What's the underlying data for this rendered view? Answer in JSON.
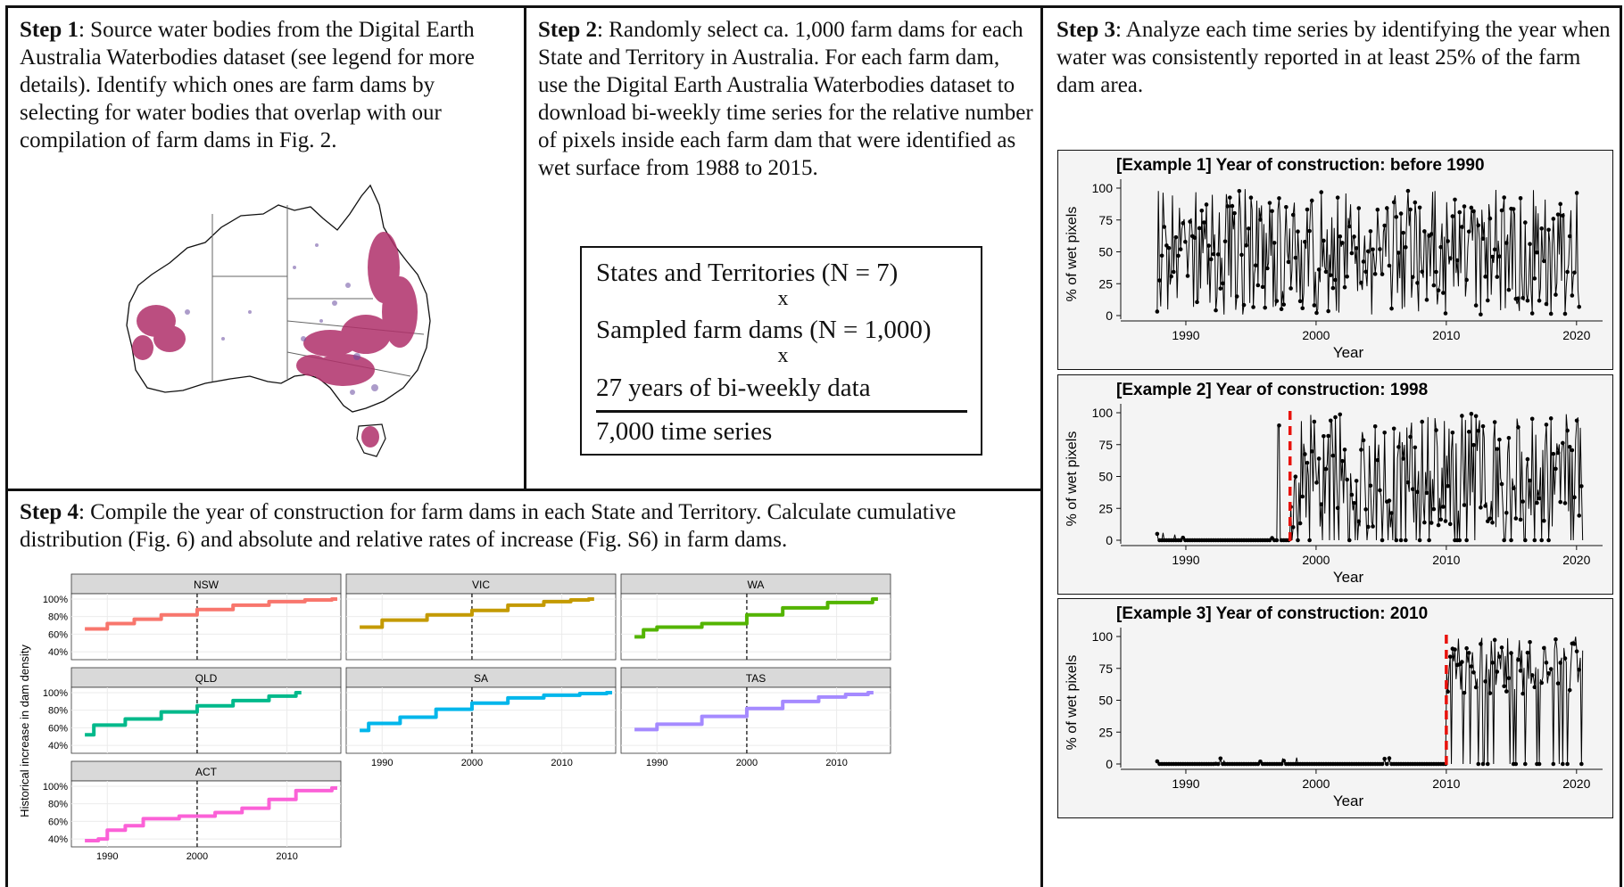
{
  "step1": {
    "label": "Step 1",
    "text": ": Source water bodies from the Digital Earth Australia Waterbodies dataset (see legend for more details). Identify which ones are farm dams by selecting for water bodies that overlap with our compilation of farm dams in Fig. 2."
  },
  "step2": {
    "label": "Step 2",
    "text": ": Randomly select ca. 1,000 farm dams for each State and Territory in Australia. For each farm dam, use the Digital Earth Australia Waterbodies dataset to download bi-weekly time series for the relative number of pixels inside each farm dam that were identified as wet surface from 1988 to 2015.",
    "formula": {
      "line1": "States and Territories (N = 7)",
      "x1": "x",
      "line2": "Sampled farm dams (N = 1,000)",
      "x2": "x",
      "line3": "27 years of bi-weekly data",
      "result": "7,000 time series"
    }
  },
  "step3": {
    "label": "Step 3",
    "text": ": Analyze each time series by identifying the year when water was consistently reported in at least 25% of the farm dam area."
  },
  "step4": {
    "label": "Step 4",
    "text": ": Compile the year of construction for farm dams in each State and Territory. Calculate cumulative distribution (Fig. 6) and absolute and relative rates of increase (Fig. S6) in farm dams."
  },
  "chart_data": [
    {
      "type": "line",
      "title": "[Example 1] Year of construction: before 1990",
      "xlabel": "Year",
      "ylabel": "% of wet pixels",
      "xlim": [
        1985,
        2022
      ],
      "ylim": [
        0,
        100
      ],
      "xticks": [
        1990,
        2000,
        2010,
        2020
      ],
      "yticks": [
        0,
        25,
        50,
        75,
        100
      ],
      "construction_year": null,
      "series": [
        {
          "x_start": 1987.8,
          "x_end": 2020.2,
          "pattern": "fluctuating 0-100 throughout"
        }
      ],
      "colors": {
        "line": "#000000",
        "marker": "#000000"
      }
    },
    {
      "type": "line",
      "title": "[Example 2] Year of construction: 1998",
      "xlabel": "Year",
      "ylabel": "% of wet pixels",
      "xlim": [
        1985,
        2022
      ],
      "ylim": [
        0,
        100
      ],
      "xticks": [
        1990,
        2000,
        2010,
        2020
      ],
      "yticks": [
        0,
        25,
        50,
        75,
        100
      ],
      "construction_year": 1998,
      "series": [
        {
          "x_start": 1987.8,
          "x_end": 2020.5,
          "pattern": "near 0 before 1998, fluctuating 0-100 after"
        }
      ],
      "colors": {
        "line": "#000000",
        "marker": "#000000",
        "construction": "#e8120c"
      }
    },
    {
      "type": "line",
      "title": "[Example 3] Year of construction: 2010",
      "xlabel": "Year",
      "ylabel": "% of wet pixels",
      "xlim": [
        1985,
        2022
      ],
      "ylim": [
        0,
        100
      ],
      "xticks": [
        1990,
        2000,
        2010,
        2020
      ],
      "yticks": [
        0,
        25,
        50,
        75,
        100
      ],
      "construction_year": 2010,
      "series": [
        {
          "x_start": 1987.8,
          "x_end": 2020.5,
          "pattern": "0 before 2010, fluctuating 0-100 after"
        }
      ],
      "colors": {
        "line": "#000000",
        "marker": "#000000",
        "construction": "#e8120c"
      }
    },
    {
      "type": "line",
      "title": "",
      "ylabel": "Historical increase in dam density",
      "xlim": [
        1986,
        2016
      ],
      "ylim": [
        35,
        102
      ],
      "xticks": [
        1990,
        2000,
        2010
      ],
      "yticks": [
        "40%",
        "60%",
        "80%",
        "100%"
      ],
      "reference_line_x": 2000,
      "facets": [
        {
          "name": "NSW",
          "color": "#f8766d",
          "x": [
            1987.5,
            1990,
            1993,
            1996,
            2000,
            2004,
            2008,
            2012,
            2015
          ],
          "y": [
            66,
            72,
            77,
            82,
            88,
            93,
            97,
            99,
            100
          ]
        },
        {
          "name": "VIC",
          "color": "#c49a00",
          "x": [
            1987.5,
            1990,
            1995,
            2000,
            2004,
            2008,
            2011,
            2013
          ],
          "y": [
            68,
            76,
            82,
            87,
            93,
            97,
            99,
            100
          ]
        },
        {
          "name": "WA",
          "color": "#53b400",
          "x": [
            1987.5,
            1988.5,
            1990,
            1995,
            2000,
            2004,
            2009,
            2014
          ],
          "y": [
            57,
            65,
            68,
            72,
            82,
            90,
            96,
            100
          ]
        },
        {
          "name": "QLD",
          "color": "#00b98b",
          "x": [
            1987.5,
            1988.5,
            1992,
            1996,
            2000,
            2004,
            2008,
            2011
          ],
          "y": [
            52,
            63,
            70,
            78,
            85,
            91,
            96,
            100
          ]
        },
        {
          "name": "SA",
          "color": "#00b6eb",
          "x": [
            1987.5,
            1988.5,
            1992,
            1996,
            2000,
            2004,
            2008,
            2012,
            2015
          ],
          "y": [
            57,
            65,
            72,
            81,
            88,
            94,
            97,
            99,
            100
          ]
        },
        {
          "name": "TAS",
          "color": "#a58aff",
          "x": [
            1987.5,
            1990,
            1995,
            2000,
            2004,
            2008,
            2011,
            2013.5
          ],
          "y": [
            58,
            64,
            73,
            82,
            90,
            95,
            98,
            100
          ]
        },
        {
          "name": "ACT",
          "color": "#fb61d7",
          "x": [
            1987.5,
            1989,
            1990,
            1992,
            1994,
            1998,
            2002,
            2005,
            2008,
            2011,
            2015
          ],
          "y": [
            38,
            40,
            50,
            55,
            63,
            66,
            70,
            75,
            85,
            95,
            98
          ]
        }
      ],
      "colors": {
        "strip": "#d9d9d9",
        "grid": "#ebebeb",
        "reference": "#000000"
      }
    }
  ]
}
